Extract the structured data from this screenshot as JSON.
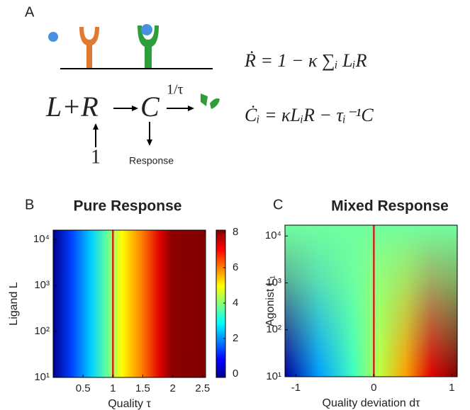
{
  "panel_a": {
    "label": "A",
    "reactants": "L+R",
    "complex": "C",
    "rate": "1/τ",
    "input": "1",
    "output": "Response",
    "equations": [
      "Ṙ = 1 − κ ∑ᵢ LᵢR",
      "Ċᵢ = κLᵢR − τᵢ⁻¹C"
    ]
  },
  "panel_b": {
    "label": "B",
    "title": "Pure Response",
    "xlabel": "Quality τ",
    "ylabel": "Ligand L",
    "xlim": [
      0,
      2.55
    ],
    "xticks": [
      0.5,
      1,
      1.5,
      2,
      2.5
    ],
    "ylim": [
      10,
      16000
    ],
    "log_y": true,
    "yticks": [
      {
        "value": 10,
        "label": "10¹"
      },
      {
        "value": 100,
        "label": "10²"
      },
      {
        "value": 1000,
        "label": "10³"
      },
      {
        "value": 10000,
        "label": "10⁴"
      }
    ],
    "marker_x": 1,
    "marker_color": "#d62020",
    "colorbar": {
      "lim": [
        -0.2,
        8.12
      ],
      "ticks": [
        0,
        2,
        4,
        6,
        8
      ]
    }
  },
  "panel_c": {
    "label": "C",
    "title": "Mixed Response",
    "xlabel": "Quality deviation dτ",
    "ylabel": "Agonist L₁",
    "xlim": [
      -1.14,
      1.07
    ],
    "xticks": [
      -1,
      0,
      1
    ],
    "ylim": [
      10,
      17000
    ],
    "log_y": true,
    "yticks": [
      {
        "value": 10,
        "label": "10¹"
      },
      {
        "value": 100,
        "label": "10²"
      },
      {
        "value": 1000,
        "label": "10³"
      },
      {
        "value": 10000,
        "label": "10⁴"
      }
    ],
    "marker_x": 0,
    "marker_color": "#d62020"
  }
}
